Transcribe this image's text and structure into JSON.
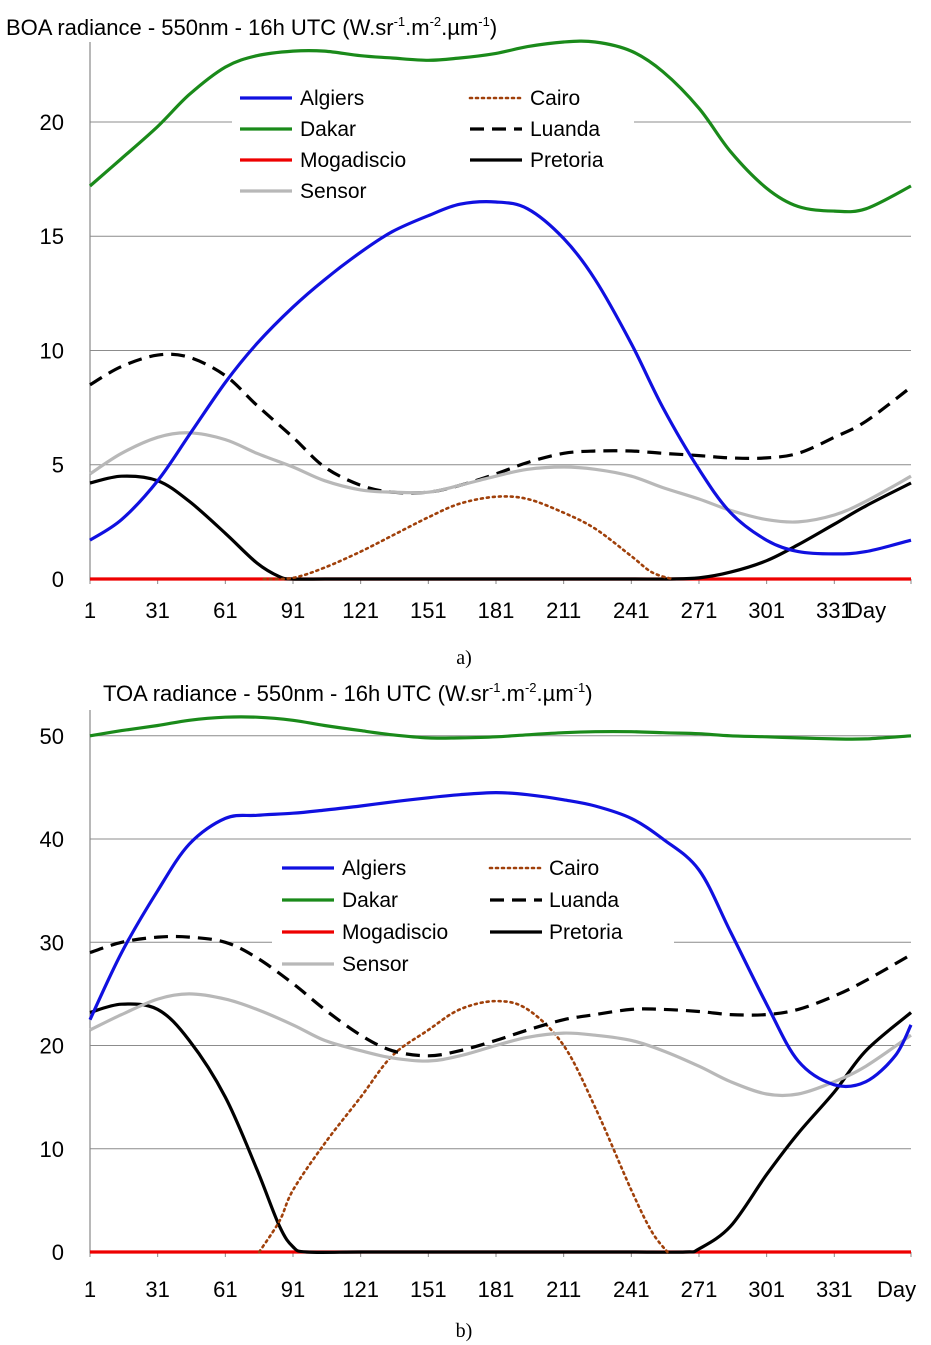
{
  "chart_data": [
    {
      "id": "a",
      "type": "line",
      "title": {
        "main": "BOA radiance - 550nm - 16h UTC (W.sr",
        "s1": "-1",
        "m": ".m",
        "s2": "-2",
        "u": ".µm",
        "s3": "-1",
        "end": ")"
      },
      "caption": "a)",
      "x_unit_label": "Day",
      "x_ticks": [
        "1",
        "31",
        "61",
        "91",
        "121",
        "151",
        "181",
        "211",
        "241",
        "271",
        "301",
        "331"
      ],
      "y_ticks": [
        "0",
        "5",
        "10",
        "15",
        "20"
      ],
      "xlim": [
        1,
        365
      ],
      "ylim": [
        0,
        23.5
      ],
      "grid": "horizontal",
      "legend_position": "top-center",
      "series": [
        {
          "name": "Algiers",
          "color": "#1010e0",
          "dash": "solid",
          "x": [
            1,
            15,
            31,
            45,
            61,
            75,
            91,
            105,
            121,
            135,
            151,
            165,
            181,
            195,
            211,
            225,
            241,
            255,
            271,
            285,
            301,
            315,
            331,
            345,
            365
          ],
          "y": [
            1.7,
            2.6,
            4.3,
            6.3,
            8.6,
            10.3,
            11.9,
            13.1,
            14.3,
            15.2,
            15.9,
            16.4,
            16.5,
            16.2,
            14.9,
            13.1,
            10.3,
            7.5,
            4.8,
            2.9,
            1.7,
            1.2,
            1.1,
            1.2,
            1.7
          ]
        },
        {
          "name": "Cairo",
          "color": "#a0400a",
          "dash": "dotted",
          "x": [
            78,
            91,
            105,
            121,
            135,
            151,
            165,
            181,
            195,
            211,
            225,
            241,
            250,
            259
          ],
          "y": [
            0,
            0.05,
            0.5,
            1.2,
            1.9,
            2.7,
            3.3,
            3.6,
            3.5,
            2.9,
            2.2,
            1.0,
            0.3,
            0
          ]
        },
        {
          "name": "Dakar",
          "color": "#1a8a1a",
          "dash": "solid",
          "x": [
            1,
            15,
            31,
            45,
            61,
            75,
            91,
            105,
            121,
            135,
            151,
            165,
            181,
            195,
            211,
            225,
            241,
            255,
            271,
            285,
            301,
            315,
            331,
            345,
            365
          ],
          "y": [
            17.2,
            18.4,
            19.8,
            21.2,
            22.4,
            22.9,
            23.1,
            23.1,
            22.9,
            22.8,
            22.7,
            22.8,
            23.0,
            23.3,
            23.5,
            23.5,
            23.1,
            22.2,
            20.6,
            18.7,
            17.1,
            16.3,
            16.1,
            16.2,
            17.2
          ]
        },
        {
          "name": "Luanda",
          "color": "#000000",
          "dash": "dashed",
          "x": [
            1,
            15,
            31,
            45,
            61,
            75,
            91,
            105,
            121,
            135,
            151,
            165,
            181,
            195,
            211,
            225,
            241,
            255,
            271,
            285,
            301,
            315,
            331,
            345,
            365
          ],
          "y": [
            8.5,
            9.3,
            9.8,
            9.7,
            8.9,
            7.6,
            6.2,
            4.9,
            4.1,
            3.8,
            3.8,
            4.1,
            4.6,
            5.1,
            5.5,
            5.6,
            5.6,
            5.5,
            5.4,
            5.3,
            5.3,
            5.5,
            6.2,
            6.9,
            8.4
          ]
        },
        {
          "name": "Mogadiscio",
          "color": "#ee0000",
          "dash": "solid",
          "x": [
            1,
            365
          ],
          "y": [
            0,
            0
          ]
        },
        {
          "name": "Pretoria",
          "color": "#000000",
          "dash": "solid",
          "x": [
            1,
            15,
            31,
            45,
            61,
            75,
            85,
            91,
            105,
            121,
            151,
            181,
            211,
            241,
            258,
            271,
            285,
            301,
            315,
            331,
            345,
            365
          ],
          "y": [
            4.2,
            4.5,
            4.3,
            3.4,
            2.0,
            0.7,
            0.1,
            0,
            0,
            0,
            0,
            0,
            0,
            0,
            0,
            0.05,
            0.3,
            0.8,
            1.5,
            2.4,
            3.2,
            4.2
          ]
        },
        {
          "name": "Sensor",
          "color": "#b8b8b8",
          "dash": "solid",
          "x": [
            1,
            15,
            31,
            45,
            61,
            75,
            91,
            105,
            121,
            135,
            151,
            165,
            181,
            195,
            211,
            225,
            241,
            255,
            271,
            285,
            301,
            315,
            331,
            345,
            365
          ],
          "y": [
            4.6,
            5.5,
            6.2,
            6.4,
            6.1,
            5.5,
            4.9,
            4.3,
            3.9,
            3.8,
            3.8,
            4.1,
            4.5,
            4.8,
            4.9,
            4.8,
            4.5,
            4.0,
            3.5,
            3.0,
            2.6,
            2.5,
            2.8,
            3.4,
            4.5
          ]
        }
      ]
    },
    {
      "id": "b",
      "type": "line",
      "title": {
        "main": "TOA radiance - 550nm - 16h UTC (W.sr",
        "s1": "-1",
        "m": ".m",
        "s2": "-2",
        "u": ".µm",
        "s3": "-1",
        "end": ")"
      },
      "caption": "b)",
      "x_unit_label": "Day",
      "x_ticks": [
        "1",
        "31",
        "61",
        "91",
        "121",
        "151",
        "181",
        "211",
        "241",
        "271",
        "301",
        "331"
      ],
      "y_ticks": [
        "0",
        "10",
        "20",
        "30",
        "40",
        "50"
      ],
      "xlim": [
        1,
        365
      ],
      "ylim": [
        0,
        52.5
      ],
      "grid": "horizontal",
      "legend_position": "center",
      "series": [
        {
          "name": "Algiers",
          "color": "#1010e0",
          "dash": "solid",
          "x": [
            1,
            15,
            31,
            45,
            61,
            75,
            91,
            105,
            121,
            135,
            151,
            165,
            181,
            195,
            211,
            225,
            241,
            255,
            271,
            285,
            301,
            315,
            331,
            345,
            358,
            365
          ],
          "y": [
            22.5,
            29,
            35,
            39.5,
            42,
            42.3,
            42.5,
            42.8,
            43.2,
            43.6,
            44,
            44.3,
            44.5,
            44.3,
            43.8,
            43.2,
            42,
            40,
            37,
            31,
            24,
            18.5,
            16.2,
            16.5,
            19,
            22
          ]
        },
        {
          "name": "Cairo",
          "color": "#a0400a",
          "dash": "dotted",
          "x": [
            76,
            85,
            91,
            105,
            121,
            135,
            151,
            165,
            181,
            195,
            211,
            225,
            241,
            250,
            257
          ],
          "y": [
            0,
            3,
            6,
            10.5,
            15,
            19,
            21.5,
            23.5,
            24.3,
            23.5,
            20,
            14,
            6,
            2,
            0
          ]
        },
        {
          "name": "Dakar",
          "color": "#1a8a1a",
          "dash": "solid",
          "x": [
            1,
            15,
            31,
            45,
            61,
            75,
            91,
            105,
            121,
            135,
            151,
            165,
            181,
            195,
            211,
            225,
            241,
            255,
            271,
            285,
            301,
            315,
            331,
            345,
            365
          ],
          "y": [
            50,
            50.5,
            51,
            51.5,
            51.8,
            51.8,
            51.5,
            51,
            50.5,
            50.1,
            49.8,
            49.8,
            49.9,
            50.1,
            50.3,
            50.4,
            50.4,
            50.3,
            50.2,
            50.0,
            49.9,
            49.8,
            49.7,
            49.7,
            50
          ]
        },
        {
          "name": "Luanda",
          "color": "#000000",
          "dash": "dashed",
          "x": [
            1,
            15,
            31,
            45,
            61,
            75,
            91,
            105,
            121,
            135,
            151,
            165,
            181,
            195,
            211,
            225,
            241,
            255,
            271,
            285,
            301,
            315,
            331,
            345,
            365
          ],
          "y": [
            29,
            30,
            30.5,
            30.5,
            30,
            28.5,
            26,
            23.5,
            21,
            19.5,
            19,
            19.5,
            20.5,
            21.5,
            22.5,
            23,
            23.5,
            23.5,
            23.3,
            23.0,
            23.0,
            23.5,
            24.8,
            26.3,
            28.8
          ]
        },
        {
          "name": "Mogadiscio",
          "color": "#ee0000",
          "dash": "solid",
          "x": [
            1,
            365
          ],
          "y": [
            0,
            0
          ]
        },
        {
          "name": "Pretoria",
          "color": "#000000",
          "dash": "solid",
          "x": [
            1,
            15,
            31,
            45,
            61,
            75,
            85,
            91,
            97,
            121,
            151,
            181,
            211,
            241,
            265,
            271,
            285,
            301,
            315,
            331,
            345,
            365
          ],
          "y": [
            23.2,
            24,
            23.5,
            20.5,
            15,
            8,
            2.5,
            0.5,
            0,
            0,
            0,
            0,
            0,
            0,
            0,
            0.3,
            2.5,
            7.5,
            11.5,
            15.5,
            19.5,
            23.2
          ]
        },
        {
          "name": "Sensor",
          "color": "#b8b8b8",
          "dash": "solid",
          "x": [
            1,
            15,
            31,
            45,
            61,
            75,
            91,
            105,
            121,
            135,
            151,
            165,
            181,
            195,
            211,
            225,
            241,
            255,
            271,
            285,
            301,
            315,
            331,
            345,
            365
          ],
          "y": [
            21.5,
            23,
            24.5,
            25,
            24.5,
            23.5,
            22,
            20.5,
            19.5,
            18.8,
            18.5,
            19,
            20,
            20.8,
            21.2,
            21,
            20.5,
            19.5,
            18,
            16.5,
            15.3,
            15.3,
            16.5,
            18,
            21
          ]
        }
      ]
    }
  ]
}
